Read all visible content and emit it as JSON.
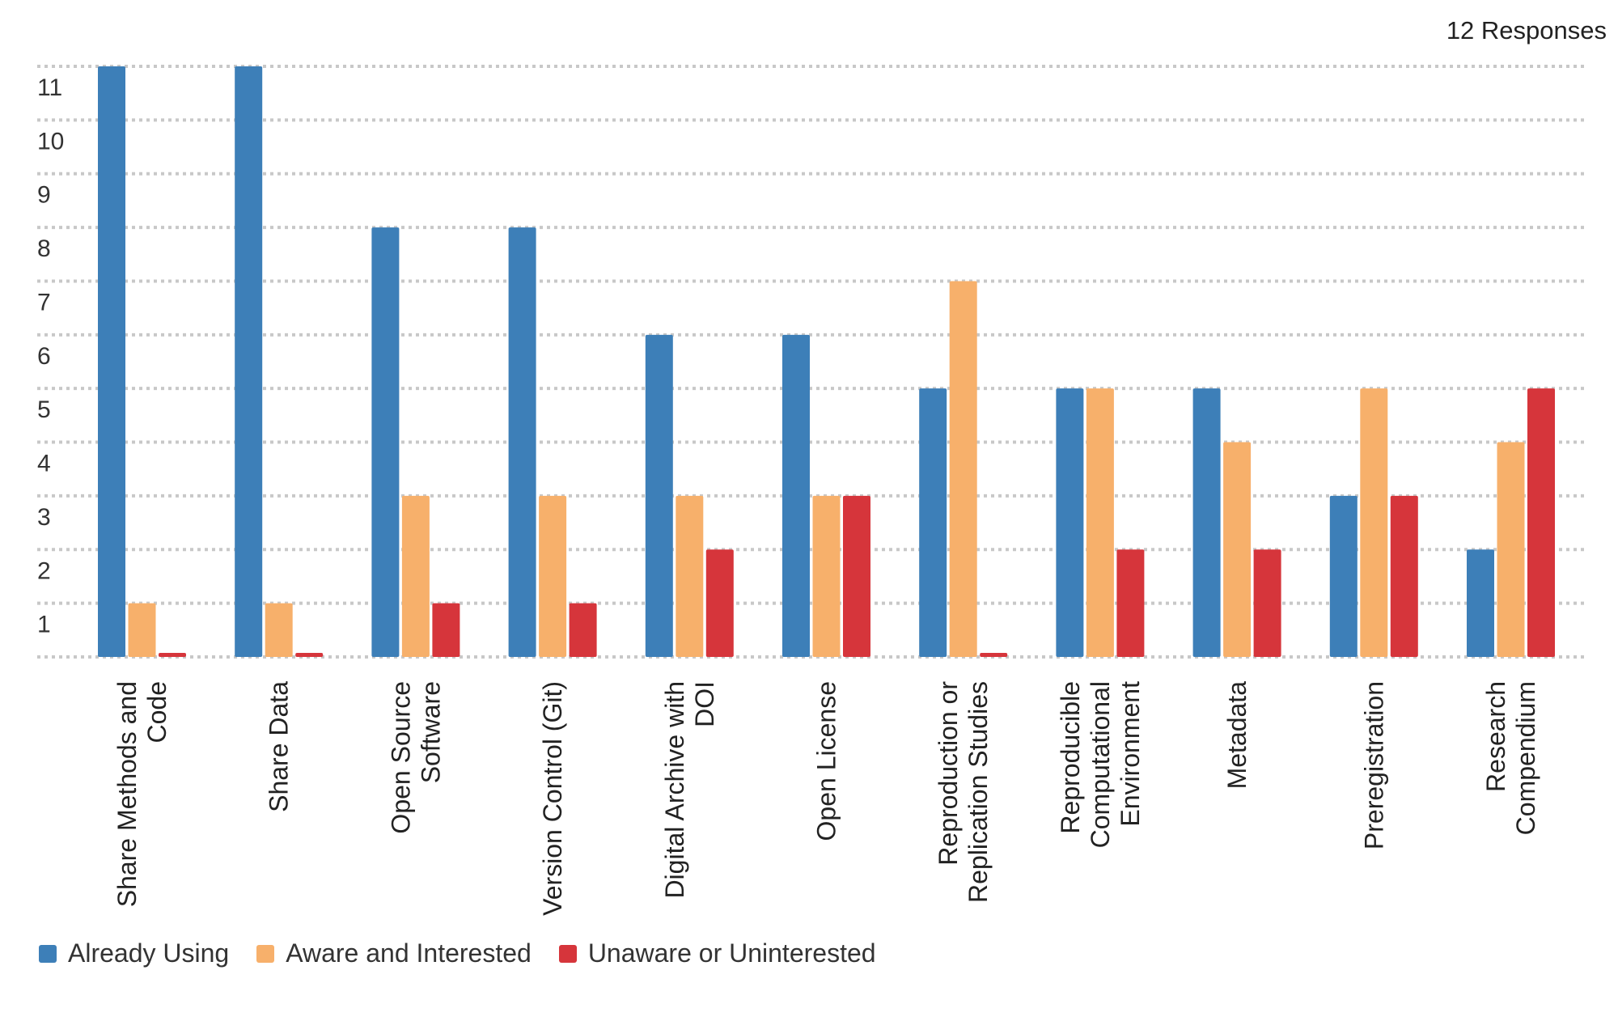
{
  "responses_label": "12 Responses",
  "chart_data": {
    "type": "bar",
    "categories": [
      "Share Methods and Code",
      "Share Data",
      "Open Source Software",
      "Version Control (Git)",
      "Digital Archive with DOI",
      "Open License",
      "Reproduction or Replication Studies",
      "Reproducible Computational Environment",
      "Metadata",
      "Preregistration",
      "Research Compendium"
    ],
    "category_label_lines": [
      [
        "Share Methods and",
        "Code"
      ],
      [
        "Share Data"
      ],
      [
        "Open Source",
        "Software"
      ],
      [
        "Version Control (Git)"
      ],
      [
        "Digital Archive with",
        "DOI"
      ],
      [
        "Open License"
      ],
      [
        "Reproduction or",
        "Replication Studies"
      ],
      [
        "Reproducible",
        "Computational",
        "Environment"
      ],
      [
        "Metadata"
      ],
      [
        "Preregistration"
      ],
      [
        "Research",
        "Compendium"
      ]
    ],
    "series": [
      {
        "name": "Already Using",
        "color": "#3d7fb8",
        "values": [
          11,
          11,
          8,
          8,
          6,
          6,
          5,
          5,
          5,
          3,
          2
        ]
      },
      {
        "name": "Aware and Interested",
        "color": "#f7b06b",
        "values": [
          1,
          1,
          3,
          3,
          3,
          3,
          7,
          5,
          4,
          5,
          4
        ]
      },
      {
        "name": "Unaware or Uninterested",
        "color": "#d6353b",
        "values": [
          0,
          0,
          1,
          1,
          2,
          3,
          0,
          2,
          2,
          3,
          5
        ]
      }
    ],
    "yticks": [
      1,
      2,
      3,
      4,
      5,
      6,
      7,
      8,
      9,
      10,
      11
    ],
    "ylim": [
      0,
      11
    ],
    "grid": true,
    "legend_position": "bottom-left",
    "title": "",
    "xlabel": "",
    "ylabel": ""
  }
}
